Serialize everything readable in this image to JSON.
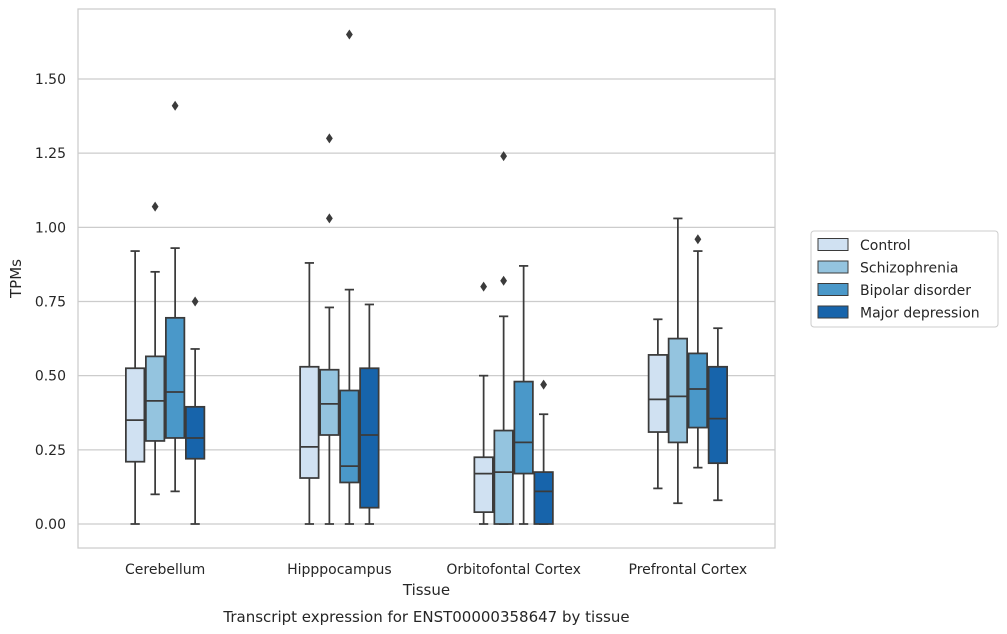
{
  "chart_data": {
    "type": "box",
    "xlabel": "Tissue",
    "ylabel": "TPMs",
    "caption": "Transcript expression for ENST00000358647 by tissue",
    "ylim": [
      -0.08,
      1.74
    ],
    "yticks": [
      "0.00",
      "0.25",
      "0.50",
      "0.75",
      "1.00",
      "1.25",
      "1.50"
    ],
    "grid": "horizontal",
    "legend_position": "right",
    "categories": [
      "Cerebellum",
      "Hipppocampus",
      "Orbitofontal Cortex",
      "Prefrontal Cortex"
    ],
    "series": [
      {
        "name": "Control",
        "color": "#d0e1f2",
        "boxes": [
          {
            "whislo": 0.0,
            "q1": 0.21,
            "med": 0.35,
            "q3": 0.525,
            "whishi": 0.92,
            "fliers": []
          },
          {
            "whislo": 0.0,
            "q1": 0.155,
            "med": 0.26,
            "q3": 0.53,
            "whishi": 0.88,
            "fliers": []
          },
          {
            "whislo": 0.0,
            "q1": 0.04,
            "med": 0.17,
            "q3": 0.225,
            "whishi": 0.5,
            "fliers": [
              0.8
            ]
          },
          {
            "whislo": 0.12,
            "q1": 0.31,
            "med": 0.42,
            "q3": 0.57,
            "whishi": 0.69,
            "fliers": []
          }
        ]
      },
      {
        "name": "Schizophrenia",
        "color": "#94c4df",
        "boxes": [
          {
            "whislo": 0.1,
            "q1": 0.28,
            "med": 0.415,
            "q3": 0.565,
            "whishi": 0.85,
            "fliers": [
              1.07
            ]
          },
          {
            "whislo": 0.0,
            "q1": 0.3,
            "med": 0.405,
            "q3": 0.52,
            "whishi": 0.73,
            "fliers": [
              1.03,
              1.3
            ]
          },
          {
            "whislo": 0.0,
            "q1": 0.0,
            "med": 0.175,
            "q3": 0.315,
            "whishi": 0.7,
            "fliers": [
              0.82,
              1.24
            ]
          },
          {
            "whislo": 0.07,
            "q1": 0.275,
            "med": 0.43,
            "q3": 0.625,
            "whishi": 1.03,
            "fliers": []
          }
        ]
      },
      {
        "name": "Bipolar disorder",
        "color": "#4a98c9",
        "boxes": [
          {
            "whislo": 0.11,
            "q1": 0.29,
            "med": 0.445,
            "q3": 0.695,
            "whishi": 0.93,
            "fliers": [
              1.41
            ]
          },
          {
            "whislo": 0.0,
            "q1": 0.14,
            "med": 0.195,
            "q3": 0.45,
            "whishi": 0.79,
            "fliers": [
              1.65
            ]
          },
          {
            "whislo": 0.0,
            "q1": 0.17,
            "med": 0.275,
            "q3": 0.48,
            "whishi": 0.87,
            "fliers": []
          },
          {
            "whislo": 0.19,
            "q1": 0.325,
            "med": 0.455,
            "q3": 0.575,
            "whishi": 0.92,
            "fliers": [
              0.96
            ]
          }
        ]
      },
      {
        "name": "Major depression",
        "color": "#1764ab",
        "boxes": [
          {
            "whislo": 0.0,
            "q1": 0.22,
            "med": 0.29,
            "q3": 0.395,
            "whishi": 0.59,
            "fliers": [
              0.75
            ]
          },
          {
            "whislo": 0.0,
            "q1": 0.055,
            "med": 0.3,
            "q3": 0.525,
            "whishi": 0.74,
            "fliers": []
          },
          {
            "whislo": 0.0,
            "q1": 0.0,
            "med": 0.11,
            "q3": 0.175,
            "whishi": 0.37,
            "fliers": [
              0.47
            ]
          },
          {
            "whislo": 0.08,
            "q1": 0.205,
            "med": 0.355,
            "q3": 0.53,
            "whishi": 0.66,
            "fliers": []
          }
        ]
      }
    ]
  }
}
